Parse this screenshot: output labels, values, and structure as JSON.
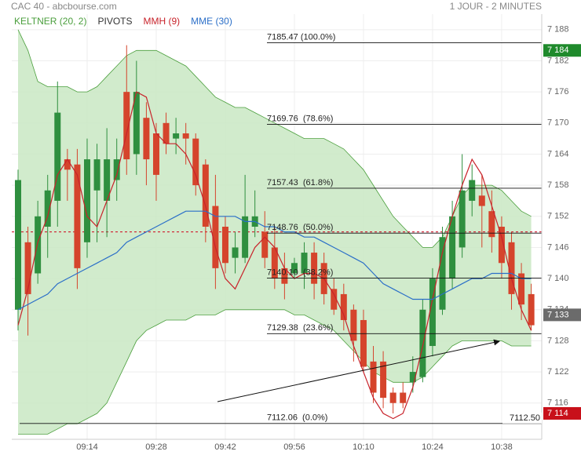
{
  "chart_data": {
    "type": "candlestick",
    "title": "CAC 40 - abcbourse.com",
    "subtitle": "1 JOUR - 2 MINUTES",
    "categories": [
      null,
      null,
      null,
      null,
      null,
      null,
      null,
      "09:14",
      null,
      null,
      null,
      null,
      null,
      null,
      "09:28",
      null,
      null,
      null,
      null,
      null,
      null,
      "09:42",
      null,
      null,
      null,
      null,
      null,
      null,
      "09:56",
      null,
      null,
      null,
      null,
      null,
      null,
      "10:10",
      null,
      null,
      null,
      null,
      null,
      null,
      "10:24",
      null,
      null,
      null,
      null,
      null,
      null,
      "10:38",
      null,
      null,
      null
    ],
    "open": [
      7134,
      7147,
      7141,
      7150,
      7155,
      7163,
      7162,
      7147,
      7157,
      7155,
      7159,
      7176,
      7164,
      7171,
      7168,
      7170,
      7167,
      7168,
      7167,
      7162,
      7154,
      7150,
      7144,
      7144,
      7150,
      7149,
      7146,
      7142,
      7141,
      7141,
      7145,
      7143,
      7138,
      7137,
      7134,
      7132,
      7124,
      7124,
      7118,
      7118,
      7120,
      7121,
      7127,
      7134,
      7140,
      7146,
      7155,
      7156,
      7153,
      7150,
      7147,
      7141,
      7137
    ],
    "high": [
      7161,
      7150,
      7155,
      7160,
      7178,
      7165,
      7165,
      7167,
      7166,
      7169,
      7167,
      7185,
      7182,
      7174,
      7170,
      7172,
      7171,
      7170,
      7168,
      7163,
      7160,
      7152,
      7149,
      7160,
      7157,
      7153,
      7150,
      7145,
      7144,
      7147,
      7147,
      7145,
      7140,
      7139,
      7135,
      7134,
      7127,
      7126,
      7119,
      7120,
      7125,
      7136,
      7142,
      7150,
      7155,
      7164,
      7162,
      7160,
      7157,
      7152,
      7149,
      7143,
      7139
    ],
    "low": [
      7130,
      7129,
      7139,
      7144,
      7150,
      7155,
      7138,
      7144,
      7147,
      7148,
      7155,
      7160,
      7160,
      7158,
      7155,
      7164,
      7164,
      7162,
      7156,
      7147,
      7138,
      7141,
      7141,
      7143,
      7148,
      7142,
      7138,
      7136,
      7140,
      7138,
      7136,
      7135,
      7133,
      7130,
      7124,
      7122,
      7116,
      7115,
      7114,
      7115,
      7118,
      7120,
      7125,
      7133,
      7138,
      7144,
      7152,
      7146,
      7145,
      7140,
      7134,
      7132,
      7130
    ],
    "close": [
      7159,
      7137,
      7152,
      7157,
      7172,
      7161,
      7142,
      7163,
      7163,
      7163,
      7163,
      7163,
      7176,
      7163,
      7160,
      7166,
      7168,
      7167,
      7158,
      7150,
      7142,
      7143,
      7146,
      7152,
      7152,
      7144,
      7140,
      7139,
      7143,
      7145,
      7139,
      7137,
      7134,
      7132,
      7128,
      7123,
      7118,
      7117,
      7116,
      7116,
      7122,
      7134,
      7140,
      7148,
      7152,
      7157,
      7159,
      7154,
      7148,
      7143,
      7137,
      7135,
      7131
    ],
    "up_color": "#2f8f3f",
    "down_color": "#d5442c",
    "keltner": {
      "name": "KELTNER (20, 2)",
      "color": "#4a9e3c",
      "fill": "#c9e7c3",
      "upper": [
        7188,
        7184,
        7178,
        7177,
        7177,
        7177,
        7176,
        7176,
        7177,
        7179,
        7181,
        7183,
        7184,
        7184,
        7184,
        7183,
        7182,
        7181,
        7179,
        7177,
        7175,
        7174,
        7173,
        7173,
        7172,
        7171,
        7170,
        7169,
        7168,
        7167,
        7167,
        7167,
        7166,
        7165,
        7163,
        7161,
        7158,
        7155,
        7152,
        7150,
        7148,
        7146,
        7146,
        7148,
        7152,
        7156,
        7158,
        7158,
        7158,
        7157,
        7155,
        7153,
        7152
      ],
      "lower": [
        7110,
        7110,
        7110,
        7110,
        7111,
        7112,
        7112,
        7113,
        7114,
        7116,
        7120,
        7124,
        7128,
        7130,
        7131,
        7132,
        7132,
        7132,
        7133,
        7133,
        7133,
        7134,
        7134,
        7134,
        7134,
        7134,
        7134,
        7134,
        7133,
        7133,
        7132,
        7131,
        7130,
        7128,
        7126,
        7124,
        7122,
        7121,
        7120,
        7120,
        7120,
        7121,
        7123,
        7125,
        7127,
        7128,
        7128,
        7128,
        7128,
        7128,
        7127,
        7127,
        7127
      ]
    },
    "pivots": {
      "name": "PIVOTS",
      "color": "#333333",
      "value": 7149,
      "line_color": "#d0021b"
    },
    "series": [
      {
        "name": "MMH (9)",
        "color": "#c8222a",
        "values": [
          7131,
          7138,
          7147,
          7152,
          7160,
          7163,
          7160,
          7152,
          7150,
          7155,
          7160,
          7168,
          7176,
          7175,
          7168,
          7166,
          7166,
          7164,
          7160,
          7154,
          7146,
          7140,
          7138,
          7142,
          7146,
          7148,
          7146,
          7142,
          7140,
          7141,
          7141,
          7140,
          7137,
          7133,
          7127,
          7122,
          7117,
          7114,
          7113,
          7114,
          7119,
          7127,
          7136,
          7145,
          7152,
          7158,
          7163,
          7160,
          7154,
          7148,
          7140,
          7134,
          7130
        ]
      },
      {
        "name": "MME (30)",
        "color": "#2b6fc8",
        "values": [
          7134,
          7135,
          7136,
          7137,
          7139,
          7140,
          7141,
          7142,
          7143,
          7144,
          7145,
          7147,
          7148,
          7149,
          7150,
          7151,
          7152,
          7153,
          7153,
          7153,
          7152,
          7152,
          7152,
          7151,
          7151,
          7150,
          7150,
          7149,
          7149,
          7148,
          7148,
          7147,
          7146,
          7145,
          7144,
          7143,
          7141,
          7139,
          7138,
          7137,
          7136,
          7136,
          7136,
          7137,
          7138,
          7139,
          7140,
          7140,
          7141,
          7141,
          7141,
          7140,
          7140
        ]
      }
    ],
    "levels": [
      {
        "value": 7185.47,
        "label": "7185.47 (100.0%)"
      },
      {
        "value": 7169.76,
        "label": "7169.76  (78.6%)"
      },
      {
        "value": 7157.43,
        "label": "7157.43  (61.8%)"
      },
      {
        "value": 7148.76,
        "label": "7148.76  (50.0%)"
      },
      {
        "value": 7140.1,
        "label": "7140.10  (38.2%)"
      },
      {
        "value": 7129.38,
        "label": "7129.38  (23.6%)"
      },
      {
        "value": 7112.06,
        "label": "7112.06  (0.0%)"
      }
    ],
    "price_tags": [
      {
        "value": 7184,
        "label": "7 184",
        "color": "#1f8a2c"
      },
      {
        "value": 7133,
        "label": "7 133",
        "color": "#6b6b6b"
      },
      {
        "value": 7114,
        "label": "7 114",
        "color": "#c8101a"
      }
    ],
    "last_low": {
      "value": 7112.5,
      "label": "7112.50"
    },
    "ylim": [
      7109,
      7191
    ],
    "yticks": [
      {
        "value": 7116,
        "label": "7 116"
      },
      {
        "value": 7122,
        "label": "7 122"
      },
      {
        "value": 7128,
        "label": "7 128"
      },
      {
        "value": 7134,
        "label": "7 134"
      },
      {
        "value": 7140,
        "label": "7 140"
      },
      {
        "value": 7146,
        "label": "7 146"
      },
      {
        "value": 7152,
        "label": "7 152"
      },
      {
        "value": 7158,
        "label": "7 158"
      },
      {
        "value": 7164,
        "label": "7 164"
      },
      {
        "value": 7170,
        "label": "7 170"
      },
      {
        "value": 7176,
        "label": "7 176"
      },
      {
        "value": 7182,
        "label": "7 182"
      },
      {
        "value": 7188,
        "label": "7 188"
      }
    ],
    "grid": true
  }
}
